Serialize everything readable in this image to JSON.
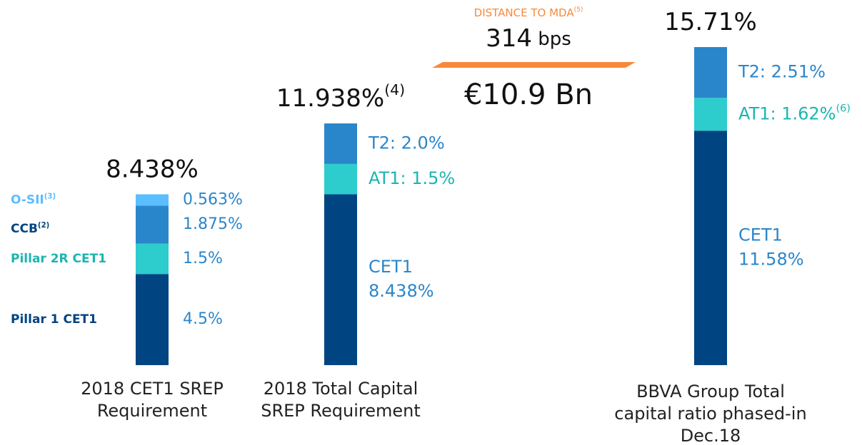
{
  "chart_data": {
    "type": "stacked_bar",
    "bars": [
      {
        "category": [
          "2018 CET1 SREP",
          "Requirement"
        ],
        "total": {
          "value": 8.438,
          "label": "8.438%"
        },
        "segments": [
          {
            "name": "Pillar 1 CET1",
            "value": 4.5,
            "value_label": "4.5%",
            "color": "#004481",
            "name_color": "#004481"
          },
          {
            "name": "Pillar 2R CET1",
            "value": 1.5,
            "value_label": "1.5%",
            "color": "#2dcccd",
            "name_color": "#1bb5b0"
          },
          {
            "name": "CCB",
            "note": "(2)",
            "value": 1.875,
            "value_label": "1.875%",
            "color": "#2a86ca",
            "name_color": "#004481"
          },
          {
            "name": "O-SII",
            "note": "(3)",
            "value": 0.563,
            "value_label": "0.563%",
            "color": "#5bbeff",
            "name_color": "#5bbeff"
          }
        ]
      },
      {
        "category": [
          "2018 Total Capital",
          "SREP Requirement"
        ],
        "total": {
          "value": 11.938,
          "label": "11.938%"
        },
        "total_note": "(4)",
        "segments": [
          {
            "name": "CET1",
            "value": 8.438,
            "value_label": "8.438%",
            "color": "#004481"
          },
          {
            "value": 1.5,
            "value_label": "AT1: 1.5%",
            "color": "#2dcccd",
            "label_color": "#1bb5b0"
          },
          {
            "value": 2.0,
            "value_label": "T2: 2.0%",
            "color": "#2a86ca"
          }
        ]
      },
      {
        "category": [
          "BBVA Group Total",
          "capital ratio phased-in",
          "Dec.18"
        ],
        "total": {
          "value": 15.71,
          "label": "15.71%"
        },
        "segments": [
          {
            "name": "CET1",
            "value": 11.58,
            "value_label": "11.58%",
            "color": "#004481"
          },
          {
            "value": 1.62,
            "value_label": "AT1: 1.62%",
            "note": "(6)",
            "color": "#2dcccd",
            "label_color": "#1bb5b0"
          },
          {
            "value": 2.51,
            "value_label": "T2: 2.51%",
            "color": "#2a86ca"
          }
        ]
      }
    ],
    "annotation": {
      "title": "DISTANCE TO MDA",
      "note": "(5)",
      "value": 314,
      "unit": "bps",
      "amount": "€10.9 Bn",
      "color": "#f7893b"
    },
    "label_color": "#2a86ca"
  }
}
